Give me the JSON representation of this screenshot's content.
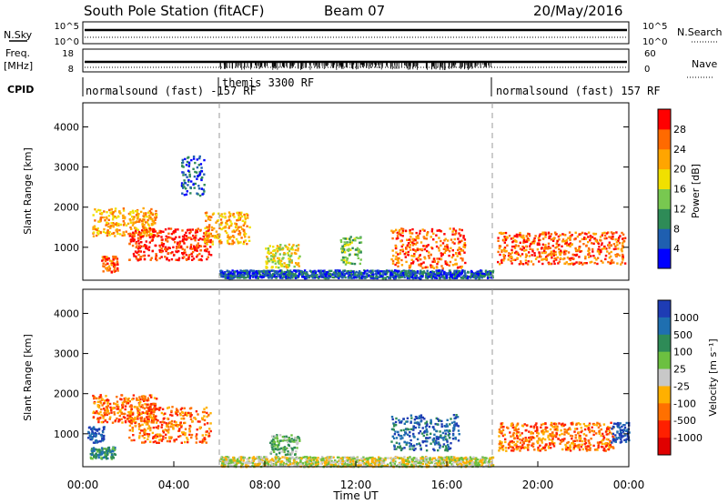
{
  "header": {
    "title": "South Pole Station (fitACF)",
    "beam": "Beam 07",
    "date": "20/May/2016"
  },
  "status_panels": {
    "nsky_label": "N.Sky",
    "nsearch_label": "N.Search",
    "noise_ticks_left": [
      "10^5",
      "10^0"
    ],
    "noise_ticks_right": [
      "10^5",
      "10^0"
    ],
    "freq_label_line1": "Freq.",
    "freq_label_line2": "[MHz]",
    "freq_ticks": [
      "18",
      "8"
    ],
    "nave_label": "Nave",
    "nave_ticks": [
      "60",
      "0"
    ],
    "cpid_label": "CPID",
    "cpid_segments": [
      {
        "label": "normalsound (fast) -157 RF",
        "start": 0,
        "end": 6
      },
      {
        "label": "themis 3300 RF",
        "start": 6,
        "end": 18
      },
      {
        "label": "normalsound (fast) 157 RF",
        "start": 18,
        "end": 24
      }
    ]
  },
  "chart_data": [
    {
      "type": "heatmap",
      "name": "power",
      "ylabel": "Slant Range [km]",
      "ylim": [
        180,
        4600
      ],
      "yticks": [
        "1000",
        "2000",
        "3000",
        "4000"
      ],
      "xlim": [
        0,
        24
      ],
      "colorbar": {
        "label": "Power [dB]",
        "ticks": [
          "4",
          "8",
          "12",
          "16",
          "20",
          "24",
          "28"
        ],
        "colors": [
          "#0000ff",
          "#1f5fb0",
          "#2e8b57",
          "#78c850",
          "#f0e000",
          "#ffa500",
          "#ff6a00",
          "#ff0000"
        ]
      },
      "echo_regions": [
        {
          "t0": 0.4,
          "t1": 3.2,
          "r0": 1300,
          "r1": 2000,
          "level": 5
        },
        {
          "t0": 2.0,
          "t1": 5.6,
          "r0": 700,
          "r1": 1500,
          "level": 7
        },
        {
          "t0": 5.3,
          "t1": 7.3,
          "r0": 1100,
          "r1": 1900,
          "level": 5
        },
        {
          "t0": 0.8,
          "t1": 1.5,
          "r0": 400,
          "r1": 800,
          "level": 6
        },
        {
          "t0": 6.0,
          "t1": 18.0,
          "r0": 250,
          "r1": 450,
          "level": 1
        },
        {
          "t0": 13.5,
          "t1": 16.8,
          "r0": 500,
          "r1": 1500,
          "level": 6
        },
        {
          "t0": 8.0,
          "t1": 9.5,
          "r0": 500,
          "r1": 1100,
          "level": 4
        },
        {
          "t0": 11.3,
          "t1": 12.2,
          "r0": 600,
          "r1": 1300,
          "level": 3
        },
        {
          "t0": 18.2,
          "t1": 23.8,
          "r0": 600,
          "r1": 1400,
          "level": 6
        },
        {
          "t0": 4.3,
          "t1": 5.3,
          "r0": 2300,
          "r1": 3300,
          "level": 1
        }
      ]
    },
    {
      "type": "heatmap",
      "name": "velocity",
      "ylabel": "Slant Range [km]",
      "xlabel": "Time UT",
      "ylim": [
        180,
        4600
      ],
      "yticks": [
        "1000",
        "2000",
        "3000",
        "4000"
      ],
      "xlim": [
        0,
        24
      ],
      "xticks": [
        "00:00",
        "04:00",
        "08:00",
        "12:00",
        "16:00",
        "20:00",
        "00:00"
      ],
      "colorbar": {
        "label": "Velocity [m s⁻¹]",
        "ticks": [
          "1000",
          "500",
          "100",
          "25",
          "-25",
          "-100",
          "-500",
          "-1000"
        ],
        "colors": [
          "#1e3cb4",
          "#1f6fb0",
          "#2e8b57",
          "#6cc040",
          "#c8c8c8",
          "#ffb000",
          "#ff7000",
          "#ff2000",
          "#e00000"
        ]
      },
      "echo_regions": [
        {
          "t0": 0.4,
          "t1": 3.2,
          "r0": 1300,
          "r1": 2000,
          "level": 6
        },
        {
          "t0": 2.0,
          "t1": 5.6,
          "r0": 800,
          "r1": 1700,
          "level": 6
        },
        {
          "t0": 0.2,
          "t1": 0.9,
          "r0": 800,
          "r1": 1200,
          "level": 0
        },
        {
          "t0": 0.3,
          "t1": 1.4,
          "r0": 400,
          "r1": 700,
          "level": 2
        },
        {
          "t0": 6.0,
          "t1": 18.0,
          "r0": 200,
          "r1": 450,
          "level": 4
        },
        {
          "t0": 13.5,
          "t1": 16.5,
          "r0": 600,
          "r1": 1500,
          "level": 1
        },
        {
          "t0": 18.2,
          "t1": 23.3,
          "r0": 600,
          "r1": 1300,
          "level": 6
        },
        {
          "t0": 23.2,
          "t1": 24.0,
          "r0": 800,
          "r1": 1300,
          "level": 0
        },
        {
          "t0": 8.2,
          "t1": 9.5,
          "r0": 500,
          "r1": 1000,
          "level": 3
        }
      ]
    }
  ]
}
